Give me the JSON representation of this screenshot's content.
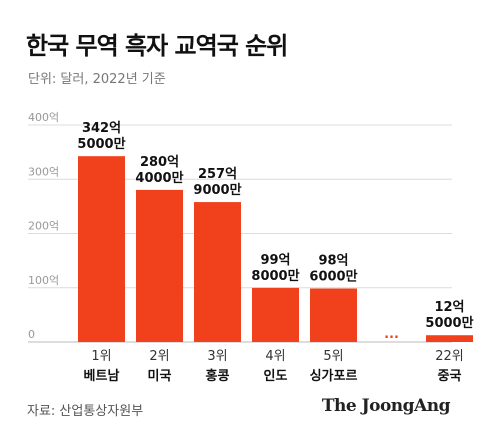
{
  "header": {
    "title": "한국 무역 흑자 교역국 순위",
    "unit": "단위: 달러, 2022년 기준"
  },
  "footer": {
    "source": "자료: 산업통상자원부",
    "logo": "The JoongAng"
  },
  "colors": {
    "bar": "#f0401c",
    "grid": "#dcdcdc",
    "axis": "#bbbbbb",
    "tick": "#999999"
  },
  "chart_data": {
    "type": "bar",
    "title": "한국 무역 흑자 교역국 순위",
    "unit_note": "단위: 달러, 2022년 기준",
    "ylim": [
      0,
      400
    ],
    "y_ticks": [
      {
        "value": 0,
        "label": "0"
      },
      {
        "value": 100,
        "label": "100억"
      },
      {
        "value": 200,
        "label": "200억"
      },
      {
        "value": 300,
        "label": "300억"
      },
      {
        "value": 400,
        "label": "400억"
      }
    ],
    "grid": true,
    "categories": [
      {
        "rank": "1위",
        "country": "베트남",
        "value": 342.5,
        "label": [
          "342억",
          "5000만"
        ]
      },
      {
        "rank": "2위",
        "country": "미국",
        "value": 280.4,
        "label": [
          "280억",
          "4000만"
        ]
      },
      {
        "rank": "3위",
        "country": "홍콩",
        "value": 257.9,
        "label": [
          "257억",
          "9000만"
        ]
      },
      {
        "rank": "4위",
        "country": "인도",
        "value": 99.8,
        "label": [
          "99억",
          "8000만"
        ]
      },
      {
        "rank": "5위",
        "country": "싱가포르",
        "value": 98.6,
        "label": [
          "98억",
          "6000만"
        ]
      },
      {
        "gap": true,
        "marker": "..."
      },
      {
        "rank": "22위",
        "country": "중국",
        "value": 12.5,
        "label": [
          "12억",
          "5000만"
        ]
      }
    ]
  }
}
